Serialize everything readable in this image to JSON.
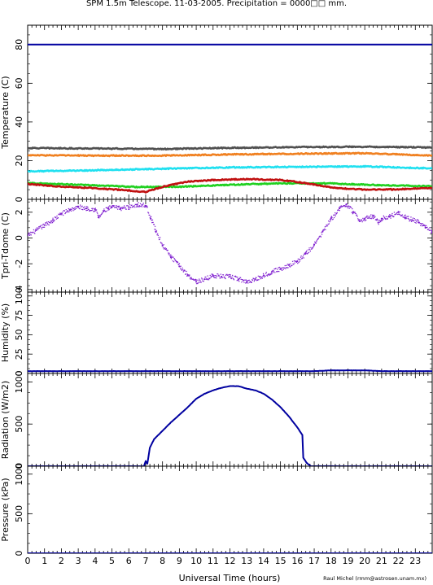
{
  "title": "SPM 1.5m Telescope. 11-03-2005. Precipitation = 0000□□ mm.",
  "xlabel": "Universal Time (hours)",
  "credit": "Raul Michel (rmm@astrosen.unam.mx)",
  "xticks": [
    "0",
    "1",
    "2",
    "3",
    "4",
    "5",
    "6",
    "7",
    "8",
    "9",
    "10",
    "11",
    "12",
    "13",
    "14",
    "15",
    "16",
    "17",
    "18",
    "19",
    "20",
    "21",
    "22",
    "23"
  ],
  "colors": {
    "navy": "#0000a0",
    "dark_gray": "#505050",
    "orange": "#f08020",
    "cyan": "#20e0f0",
    "green": "#20d020",
    "red": "#c01010",
    "purple": "#8020d0"
  },
  "chart_data": [
    {
      "type": "line",
      "ylabel": "Temperature (C)",
      "xlim": [
        0,
        24
      ],
      "ylim": [
        0,
        90
      ],
      "yticks": [
        0,
        20,
        40,
        60,
        80
      ],
      "series": [
        {
          "color": "#0000a0",
          "x": [
            0,
            24
          ],
          "y": [
            80,
            80
          ]
        },
        {
          "color": "#505050",
          "x": [
            0,
            4,
            8,
            12,
            16,
            20,
            24
          ],
          "y": [
            26.5,
            26.3,
            26.0,
            26.6,
            27.0,
            27.2,
            26.8
          ]
        },
        {
          "color": "#f08020",
          "x": [
            0,
            4,
            8,
            12,
            16,
            20,
            24
          ],
          "y": [
            22.8,
            22.6,
            22.6,
            23.2,
            23.6,
            23.8,
            22.6
          ]
        },
        {
          "color": "#20e0f0",
          "x": [
            0,
            4,
            8,
            12,
            16,
            20,
            24
          ],
          "y": [
            14.5,
            15.0,
            15.8,
            16.5,
            16.8,
            17.0,
            16.0
          ]
        },
        {
          "color": "#20d020",
          "x": [
            0,
            4,
            6.5,
            9,
            12,
            15,
            18,
            21,
            24
          ],
          "y": [
            8.5,
            7.2,
            6.4,
            6.5,
            7.5,
            8.3,
            8.2,
            7.3,
            6.8
          ]
        },
        {
          "color": "#c01010",
          "x": [
            0,
            2,
            4,
            6,
            7,
            8,
            9.5,
            11,
            13,
            15,
            16,
            17,
            18,
            19,
            20,
            22,
            24
          ],
          "y": [
            8.0,
            6.5,
            5.8,
            4.6,
            3.8,
            6.5,
            9.2,
            10.0,
            10.5,
            10.0,
            9.0,
            7.6,
            6.2,
            5.5,
            5.0,
            5.2,
            6.0
          ]
        }
      ]
    },
    {
      "type": "scatter",
      "ylabel": "Tpri-Tdome (C)",
      "xlim": [
        0,
        24
      ],
      "ylim": [
        -4.2,
        3
      ],
      "yticks": [
        -4,
        -2,
        0,
        2
      ],
      "series": [
        {
          "color": "#8020d0",
          "x": [
            0,
            0.5,
            1,
            1.5,
            2,
            2.5,
            3,
            3.5,
            4,
            4.2,
            4.5,
            4.8,
            5,
            5.5,
            6,
            6.5,
            7,
            7.3,
            7.6,
            8,
            8.5,
            9,
            9.5,
            10,
            10.5,
            11,
            11.5,
            12,
            12.5,
            13,
            13.5,
            14,
            14.5,
            15,
            15.5,
            16,
            16.5,
            17,
            17.5,
            18,
            18.5,
            18.9,
            19.3,
            19.7,
            20,
            20.5,
            20.8,
            21,
            21.5,
            22,
            22.4,
            22.8,
            23.2,
            23.6,
            24
          ],
          "y": [
            0.2,
            0.6,
            1.0,
            1.4,
            1.9,
            2.2,
            2.4,
            2.3,
            2.2,
            1.6,
            2.1,
            2.3,
            2.4,
            2.3,
            2.4,
            2.6,
            2.5,
            1.5,
            0.5,
            -0.6,
            -1.5,
            -2.2,
            -2.9,
            -3.4,
            -3.2,
            -2.9,
            -3.0,
            -3.0,
            -3.2,
            -3.4,
            -3.2,
            -2.9,
            -2.6,
            -2.4,
            -2.1,
            -1.8,
            -1.2,
            -0.5,
            0.5,
            1.5,
            2.3,
            2.6,
            2.0,
            1.3,
            1.5,
            1.7,
            1.2,
            1.5,
            1.7,
            2.0,
            1.6,
            1.4,
            1.2,
            0.8,
            0.5
          ]
        }
      ]
    },
    {
      "type": "line",
      "ylabel": "Humidity (%)",
      "xlim": [
        0,
        24
      ],
      "ylim": [
        0,
        105
      ],
      "yticks": [
        0,
        25,
        50,
        75,
        100
      ],
      "series": [
        {
          "color": "#0000a0",
          "x": [
            0,
            10,
            17,
            18,
            20,
            21,
            24
          ],
          "y": [
            3,
            3,
            3,
            4,
            4,
            3,
            3
          ]
        }
      ]
    },
    {
      "type": "line",
      "ylabel": "Radiation (W/m2)",
      "xlim": [
        0,
        24
      ],
      "ylim": [
        0,
        1100
      ],
      "yticks": [
        0,
        500,
        1000
      ],
      "series": [
        {
          "color": "#0000a0",
          "x": [
            0,
            6.9,
            7.0,
            7.1,
            7.25,
            7.5,
            8,
            8.5,
            9,
            9.5,
            10,
            10.5,
            11,
            11.5,
            12,
            12.5,
            13,
            13.5,
            14,
            14.5,
            15,
            15.5,
            16,
            16.3,
            16.35,
            16.55,
            16.8,
            24
          ],
          "y": [
            0,
            0,
            60,
            30,
            220,
            320,
            420,
            520,
            610,
            700,
            800,
            860,
            900,
            930,
            950,
            950,
            920,
            900,
            860,
            790,
            700,
            590,
            460,
            370,
            100,
            40,
            0,
            0
          ]
        }
      ]
    },
    {
      "type": "line",
      "ylabel": "Pressure (kPa)",
      "xlim": [
        0,
        24
      ],
      "ylim": [
        0,
        1100
      ],
      "yticks": [
        0,
        500,
        1000
      ],
      "series": [
        {
          "color": "#0000a0",
          "x": [
            0,
            24
          ],
          "y": [
            0,
            0
          ]
        }
      ]
    }
  ]
}
